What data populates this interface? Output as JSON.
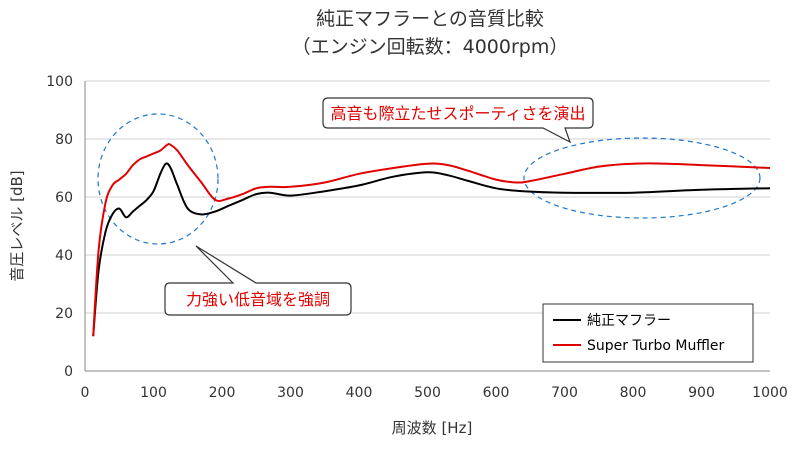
{
  "chart_data": {
    "type": "line",
    "title": "純正マフラーとの音質比較",
    "subtitle": "（エンジン回転数：4000rpm）",
    "xlabel": "周波数 [Hz]",
    "ylabel": "音圧レベル [dB]",
    "xlim": [
      0,
      1000
    ],
    "ylim": [
      0,
      100
    ],
    "xticks": [
      "0",
      "100",
      "200",
      "300",
      "400",
      "500",
      "600",
      "700",
      "800",
      "900",
      "1000"
    ],
    "yticks": [
      "0",
      "20",
      "40",
      "60",
      "80",
      "100"
    ],
    "grid": "horizontal",
    "legend_position": "bottom-right",
    "series": [
      {
        "name": "純正マフラー",
        "color": "#000000",
        "x": [
          12,
          20,
          30,
          40,
          50,
          60,
          70,
          80,
          90,
          100,
          110,
          118,
          125,
          135,
          150,
          170,
          190,
          210,
          230,
          250,
          270,
          300,
          350,
          400,
          450,
          500,
          530,
          560,
          600,
          640,
          700,
          800,
          900,
          1000
        ],
        "y": [
          12,
          35,
          48,
          54,
          56,
          53,
          55,
          57,
          59,
          62,
          68,
          71.5,
          70,
          64,
          56,
          54,
          55,
          57,
          59,
          61,
          61.5,
          60.5,
          62,
          64,
          67,
          68.5,
          67.5,
          65.5,
          63,
          62,
          61.5,
          61.5,
          62.5,
          63
        ]
      },
      {
        "name": "Super Turbo Muffler",
        "color": "#e00000",
        "x": [
          12,
          20,
          30,
          40,
          50,
          60,
          70,
          80,
          90,
          100,
          110,
          120,
          125,
          135,
          150,
          170,
          190,
          210,
          230,
          250,
          270,
          300,
          350,
          400,
          450,
          500,
          530,
          560,
          600,
          630,
          650,
          700,
          750,
          800,
          850,
          900,
          1000
        ],
        "y": [
          12,
          42,
          58,
          64,
          66,
          68,
          71,
          73,
          74,
          75,
          76,
          78,
          78,
          76,
          71,
          65,
          59,
          59.5,
          61,
          63,
          63.5,
          63.5,
          65,
          68,
          70,
          71.5,
          71,
          69,
          66,
          65,
          65.5,
          68,
          70.5,
          71.5,
          71.5,
          71,
          70
        ]
      }
    ],
    "annotations": [
      {
        "text": "高音も際立たせスポーティさを演出"
      },
      {
        "text": "力強い低音域を強調"
      }
    ]
  }
}
